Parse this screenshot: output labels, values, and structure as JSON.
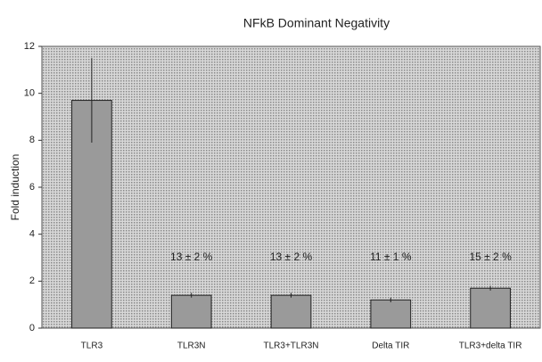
{
  "chart_data": {
    "type": "bar",
    "title": "NFkB Dominant Negativity",
    "y_label": "Fold induction",
    "categories": [
      "TLR3",
      "TLR3N",
      "TLR3+TLR3N",
      "Delta TIR",
      "TLR3+delta TIR"
    ],
    "values": [
      9.7,
      1.4,
      1.4,
      1.2,
      1.7
    ],
    "errors": [
      1.8,
      0.1,
      0.1,
      0.1,
      0.1
    ],
    "color": "#9a9a9a",
    "background": "#c4c4c4",
    "annotations": [
      "13 ± 2 %",
      "13 ± 2 %",
      "11 ± 1 %",
      "15 ± 2 %"
    ],
    "ylim": [
      0,
      12
    ],
    "yticks": [
      0,
      2,
      4,
      6,
      8,
      10,
      12
    ]
  }
}
